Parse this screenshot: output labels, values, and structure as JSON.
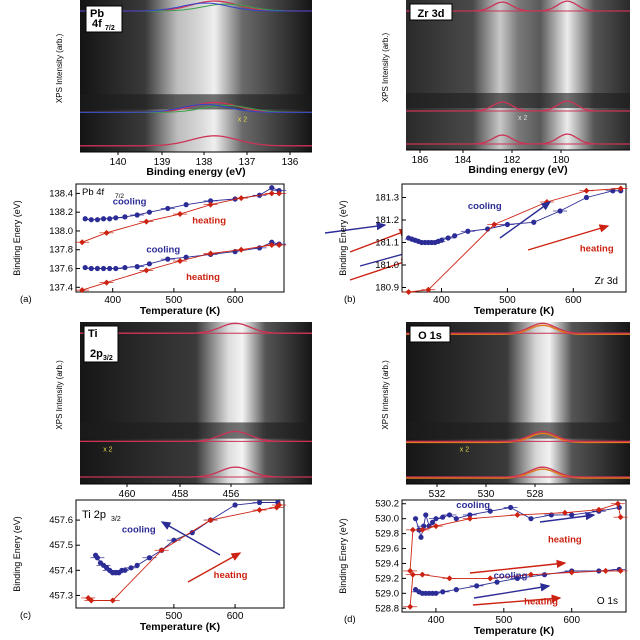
{
  "figure": {
    "ylabel_spectra": "XPS Intensity (arb.)",
    "xlabel_spectra": "Binding energy (eV)",
    "xlabel_plot": "Temperature (K)",
    "ylabel_plot": "Binding Enery (eV)",
    "cooling_label": "cooling",
    "heating_label": "heating",
    "scale_label": "x 2"
  },
  "colors": {
    "cooling": "#2c2c96",
    "heating": "#cc2211",
    "fit_line": "#cc3355",
    "envelope_orange": "#e07a1a",
    "component_green": "#3aa04a",
    "component_blue": "#3344cc"
  },
  "chart_data": [
    {
      "panel": "Pb-spectra",
      "type": "heatmap",
      "tag": "Pb 4f7/2",
      "tag_main": "Pb",
      "tag_line": "4f",
      "tag_sub": "7/2",
      "xticks": [
        "140",
        "139",
        "138",
        "137",
        "136"
      ],
      "x_reversed": true,
      "scale_label": "x 2"
    },
    {
      "panel": "Zr-spectra",
      "type": "heatmap",
      "tag": "Zr 3d",
      "xticks": [
        "186",
        "184",
        "182",
        "180"
      ],
      "x_reversed": true,
      "scale_label": "x 2"
    },
    {
      "panel": "Ti-spectra",
      "type": "heatmap",
      "tag": "Ti 2p3/2",
      "tag_main": "Ti",
      "tag_line": "2p",
      "tag_sub": "3/2",
      "xticks": [
        "460",
        "458",
        "456"
      ],
      "x_reversed": true,
      "scale_label": "x 2"
    },
    {
      "panel": "O-spectra",
      "type": "heatmap",
      "tag": "O 1s",
      "xticks": [
        "532",
        "530",
        "528"
      ],
      "x_reversed": true,
      "scale_label": "x 2"
    },
    {
      "panel": "a",
      "type": "scatter",
      "panel_label": "(a)",
      "corner_text": "Pb 4f",
      "corner_sub": "7/2",
      "xlabel": "Temperature (K)",
      "ylabel": "Binding Enery (eV)",
      "xlim": [
        340,
        680
      ],
      "ylim": [
        137.35,
        138.5
      ],
      "xticks": [
        400,
        500,
        600
      ],
      "yticks": [
        "138.4",
        "138.2",
        "138.0",
        "137.8",
        "137.6",
        "137.4"
      ],
      "series": [
        {
          "name": "cooling",
          "color": "#2c2c96",
          "marker": "circle",
          "x": [
            355,
            365,
            375,
            385,
            395,
            405,
            420,
            440,
            460,
            490,
            520,
            560,
            600,
            640,
            660,
            672
          ],
          "y": [
            138.13,
            138.12,
            138.12,
            138.13,
            138.13,
            138.14,
            138.15,
            138.17,
            138.2,
            138.24,
            138.28,
            138.32,
            138.34,
            138.38,
            138.46,
            138.43
          ]
        },
        {
          "name": "heating",
          "color": "#cc2211",
          "marker": "diamond",
          "x": [
            350,
            390,
            455,
            510,
            560,
            610,
            660,
            672
          ],
          "y": [
            137.88,
            137.98,
            138.1,
            138.18,
            138.28,
            138.35,
            138.4,
            138.4
          ]
        },
        {
          "name": "cooling",
          "color": "#2c2c96",
          "marker": "circle",
          "x": [
            355,
            365,
            375,
            385,
            395,
            405,
            420,
            440,
            460,
            490,
            520,
            560,
            600,
            640,
            660,
            672
          ],
          "y": [
            137.61,
            137.6,
            137.6,
            137.6,
            137.6,
            137.6,
            137.61,
            137.62,
            137.65,
            137.7,
            137.72,
            137.75,
            137.78,
            137.82,
            137.88,
            137.86
          ]
        },
        {
          "name": "heating",
          "color": "#cc2211",
          "marker": "diamond",
          "x": [
            350,
            390,
            455,
            510,
            560,
            610,
            660,
            672
          ],
          "y": [
            137.37,
            137.45,
            137.58,
            137.68,
            137.76,
            137.8,
            137.85,
            137.85
          ]
        }
      ],
      "annotations": [
        {
          "text": "cooling",
          "color": "#2c2c96",
          "x": 400,
          "y": 138.28
        },
        {
          "text": "heating",
          "color": "#cc2211",
          "x": 530,
          "y": 138.08
        },
        {
          "text": "cooling",
          "color": "#2c2c96",
          "x": 455,
          "y": 137.77
        },
        {
          "text": "heating",
          "color": "#cc2211",
          "x": 520,
          "y": 137.48
        }
      ]
    },
    {
      "panel": "b",
      "type": "scatter",
      "panel_label": "(b)",
      "corner_text": "Zr 3d",
      "xlabel": "Temperature (K)",
      "ylabel": "Binding Enery (eV)",
      "xlim": [
        340,
        680
      ],
      "ylim": [
        180.88,
        181.36
      ],
      "xticks": [
        400,
        500,
        600
      ],
      "yticks": [
        "181.3",
        "181.2",
        "181.1",
        "181.0",
        "180.9"
      ],
      "series": [
        {
          "name": "cooling",
          "color": "#2c2c96",
          "marker": "circle",
          "x": [
            350,
            355,
            360,
            365,
            370,
            375,
            380,
            385,
            390,
            395,
            400,
            410,
            420,
            440,
            470,
            500,
            540,
            580,
            620,
            660,
            672
          ],
          "y": [
            181.12,
            181.115,
            181.11,
            181.105,
            181.1,
            181.1,
            181.1,
            181.1,
            181.1,
            181.105,
            181.11,
            181.12,
            181.13,
            181.15,
            181.16,
            181.18,
            181.19,
            181.24,
            181.3,
            181.33,
            181.33
          ]
        },
        {
          "name": "heating",
          "color": "#cc2211",
          "marker": "diamond",
          "x": [
            350,
            380,
            480,
            560,
            620,
            672
          ],
          "y": [
            180.88,
            180.89,
            181.18,
            181.28,
            181.33,
            181.34
          ]
        }
      ],
      "annotations": [
        {
          "text": "cooling",
          "color": "#2c2c96",
          "x": 440,
          "y": 181.25
        },
        {
          "text": "heating",
          "color": "#cc2211",
          "x": 610,
          "y": 181.06
        }
      ]
    },
    {
      "panel": "c",
      "type": "scatter",
      "panel_label": "(c)",
      "corner_text": "Ti 2p",
      "corner_sub": "3/2",
      "xlabel": "Temperature (K)",
      "ylabel": "Binding Enery (eV)",
      "xlim": [
        340,
        680
      ],
      "ylim": [
        457.25,
        457.68
      ],
      "xticks": [
        500,
        600
      ],
      "yticks": [
        "457.6",
        "457.5",
        "457.4",
        "457.3"
      ],
      "series": [
        {
          "name": "cooling",
          "color": "#2c2c96",
          "marker": "circle",
          "x": [
            372,
            375,
            380,
            385,
            390,
            395,
            400,
            405,
            410,
            415,
            420,
            430,
            440,
            460,
            480,
            500,
            530,
            560,
            600,
            640,
            670
          ],
          "y": [
            457.46,
            457.45,
            457.43,
            457.42,
            457.41,
            457.4,
            457.39,
            457.39,
            457.39,
            457.4,
            457.4,
            457.41,
            457.42,
            457.45,
            457.48,
            457.52,
            457.55,
            457.6,
            457.66,
            457.67,
            457.67
          ]
        },
        {
          "name": "heating",
          "color": "#cc2211",
          "marker": "diamond",
          "x": [
            360,
            365,
            400,
            480,
            560,
            640,
            668,
            672
          ],
          "y": [
            457.29,
            457.28,
            457.28,
            457.48,
            457.6,
            457.64,
            457.65,
            457.66
          ]
        }
      ],
      "annotations": [
        {
          "text": "cooling",
          "color": "#2c2c96",
          "x": 415,
          "y": 457.55
        },
        {
          "text": "heating",
          "color": "#cc2211",
          "x": 565,
          "y": 457.37
        }
      ]
    },
    {
      "panel": "d",
      "type": "scatter",
      "panel_label": "(d)",
      "corner_text": "O 1s",
      "xlabel": "Temperature (K)",
      "ylabel": "Binding Enery (eV)",
      "xlim": [
        350,
        680
      ],
      "ylim": [
        528.75,
        530.25
      ],
      "xticks": [
        400,
        500,
        600
      ],
      "yticks": [
        "530.2",
        "530.0",
        "529.8",
        "529.6",
        "529.4",
        "529.2",
        "529.0",
        "528.8"
      ],
      "series": [
        {
          "name": "cooling",
          "color": "#2c2c96",
          "marker": "circle",
          "x": [
            370,
            375,
            378,
            382,
            385,
            390,
            395,
            400,
            410,
            420,
            430,
            450,
            480,
            510,
            540,
            570,
            600,
            640,
            670
          ],
          "y": [
            530.0,
            529.85,
            529.75,
            529.9,
            530.05,
            529.9,
            529.95,
            530.0,
            530.02,
            530.05,
            530.0,
            530.05,
            530.1,
            530.15,
            530.0,
            530.05,
            530.05,
            530.1,
            530.15
          ]
        },
        {
          "name": "heating",
          "color": "#cc2211",
          "marker": "diamond",
          "x": [
            362,
            366,
            380,
            400,
            450,
            520,
            590,
            640,
            668,
            672
          ],
          "y": [
            529.3,
            529.85,
            529.85,
            529.9,
            530.0,
            530.05,
            530.08,
            530.12,
            530.2,
            530.02
          ]
        },
        {
          "name": "cooling",
          "color": "#2c2c96",
          "marker": "circle",
          "x": [
            370,
            375,
            380,
            385,
            390,
            395,
            400,
            410,
            430,
            460,
            490,
            520,
            560,
            600,
            640,
            670
          ],
          "y": [
            529.05,
            529.02,
            529.0,
            529.0,
            529.0,
            529.0,
            529.0,
            529.02,
            529.05,
            529.1,
            529.15,
            529.2,
            529.25,
            529.3,
            529.3,
            529.32
          ]
        },
        {
          "name": "heating",
          "color": "#cc2211",
          "marker": "diamond",
          "x": [
            362,
            366,
            380,
            420,
            480,
            540,
            600,
            650,
            672
          ],
          "y": [
            528.82,
            529.25,
            529.25,
            529.2,
            529.2,
            529.25,
            529.28,
            529.3,
            529.3
          ]
        }
      ],
      "annotations": [
        {
          "text": "cooling",
          "color": "#2c2c96",
          "x": 430,
          "y": 530.14
        },
        {
          "text": "heating",
          "color": "#cc2211",
          "x": 565,
          "y": 529.68
        },
        {
          "text": "cooling",
          "color": "#2c2c96",
          "x": 485,
          "y": 529.2
        },
        {
          "text": "heating",
          "color": "#cc2211",
          "x": 530,
          "y": 528.85
        }
      ]
    }
  ]
}
